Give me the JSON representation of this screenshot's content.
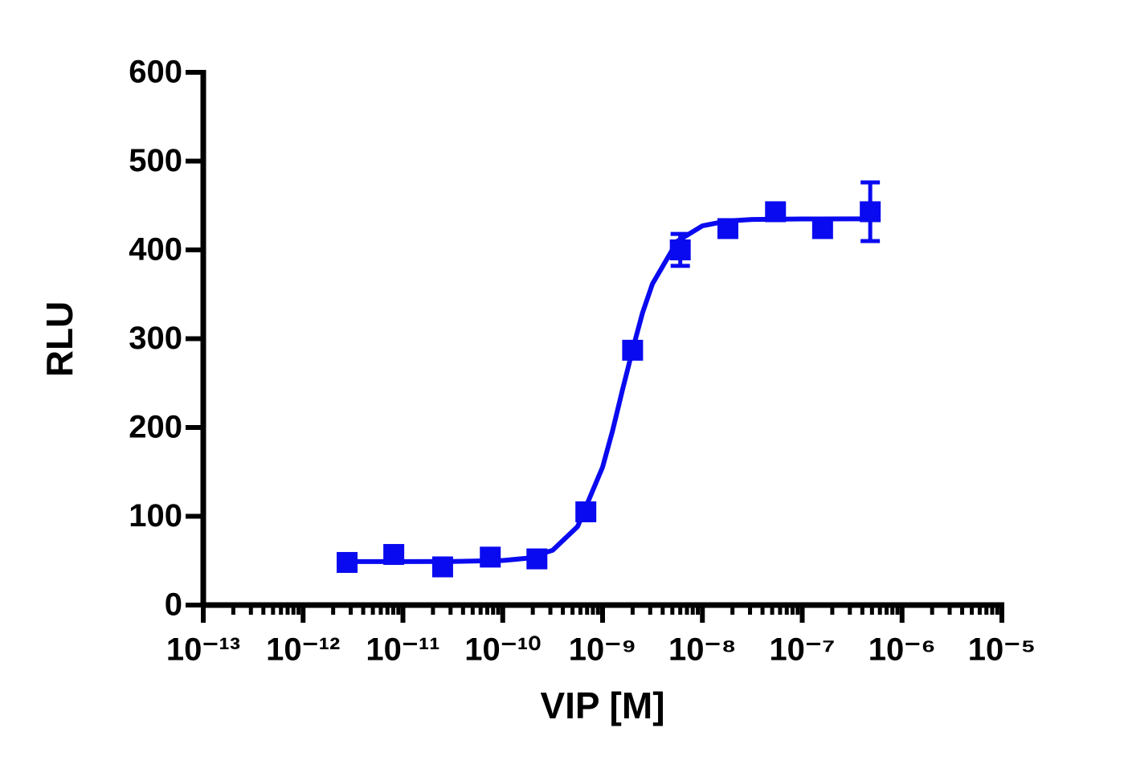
{
  "chart_data": {
    "type": "scatter",
    "x_label": "VIP [M]",
    "y_label": "RLU",
    "x": [
      2.76e-12,
      8.1e-12,
      2.5e-11,
      7.5e-11,
      2.2e-10,
      6.8e-10,
      2e-09,
      6e-09,
      1.8e-08,
      5.4e-08,
      1.6e-07,
      4.8e-07
    ],
    "values": [
      48,
      57,
      43,
      54,
      52,
      105,
      287,
      400,
      424,
      443,
      424,
      443
    ],
    "errors": [
      3,
      3,
      3,
      3,
      3,
      4,
      5,
      18,
      4,
      4,
      4,
      33
    ],
    "curve": {
      "x": [
        2.76e-12,
        1e-11,
        3.16e-11,
        1e-10,
        1.78e-10,
        3.16e-10,
        5.62e-10,
        1e-09,
        1.26e-09,
        1.58e-09,
        2e-09,
        2.51e-09,
        3.16e-09,
        5.62e-09,
        1e-08,
        1.78e-08,
        3.16e-08,
        1e-07,
        3.16e-07,
        4.8e-07
      ],
      "values": [
        49,
        49,
        49.1,
        50.2,
        52.8,
        61.7,
        88.4,
        155.3,
        196.4,
        242,
        287.6,
        328.9,
        361.8,
        409.9,
        427.1,
        432.6,
        434.3,
        434.8,
        435,
        435
      ]
    },
    "color": "#0a0af0",
    "xscale": "log",
    "log_minor_ticks": true,
    "xlim": [
      1e-13,
      1e-05
    ],
    "xticks": [
      {
        "value": 1e-13,
        "label": "10⁻¹³"
      },
      {
        "value": 1e-12,
        "label": "10⁻¹²"
      },
      {
        "value": 1e-11,
        "label": "10⁻¹¹"
      },
      {
        "value": 1e-10,
        "label": "10⁻¹⁰"
      },
      {
        "value": 1e-09,
        "label": "10⁻⁹"
      },
      {
        "value": 1e-08,
        "label": "10⁻⁸"
      },
      {
        "value": 1e-07,
        "label": "10⁻⁷"
      },
      {
        "value": 1e-06,
        "label": "10⁻⁶"
      },
      {
        "value": 1e-05,
        "label": "10⁻⁵"
      }
    ],
    "ylim": [
      0,
      600
    ],
    "yticks": [
      0,
      100,
      200,
      300,
      400,
      500,
      600
    ],
    "grid": false
  }
}
